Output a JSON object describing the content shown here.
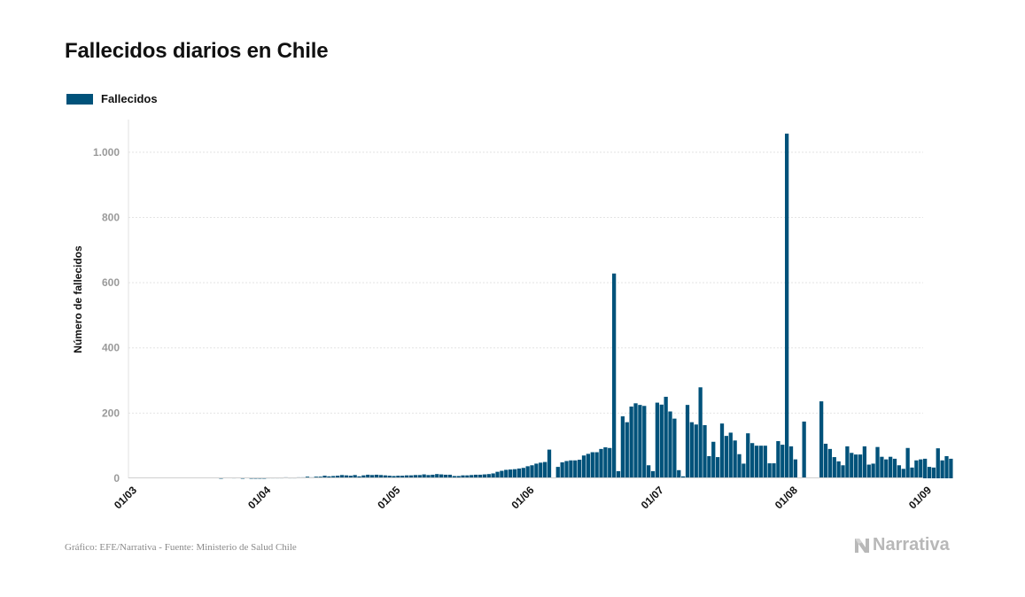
{
  "title": "Fallecidos diarios en Chile",
  "source": "Gráfico: EFE/Narrativa - Fuente: Ministerio de Salud Chile",
  "brand": {
    "name": "Narrativa",
    "icon": "narrativa-logo-icon",
    "color": "#b8b8b8"
  },
  "chart_data": {
    "type": "bar",
    "title": "Fallecidos diarios en Chile",
    "ylabel": "Número de fallecidos",
    "xlabel": "",
    "ylim": [
      0,
      1100
    ],
    "yticks": [
      0,
      200,
      400,
      600,
      800,
      1000
    ],
    "ytick_labels": [
      "0",
      "200",
      "400",
      "600",
      "800",
      "1.000"
    ],
    "x_domain": [
      "2020-03-01",
      "2020-09-01"
    ],
    "xticks": [
      "2020-03-01",
      "2020-04-01",
      "2020-05-01",
      "2020-06-01",
      "2020-07-01",
      "2020-08-01",
      "2020-09-01"
    ],
    "xtick_labels": [
      "01/03",
      "01/04",
      "01/05",
      "01/06",
      "01/07",
      "01/08",
      "01/09"
    ],
    "grid": true,
    "legend_position": "top-left",
    "series": [
      {
        "name": "Fallecidos",
        "color": "#00527a",
        "start_date": "2020-03-01",
        "values": [
          0,
          0,
          0,
          0,
          0,
          0,
          0,
          0,
          0,
          0,
          0,
          0,
          0,
          0,
          0,
          0,
          0,
          0,
          0,
          0,
          0,
          1,
          0,
          0,
          2,
          0,
          1,
          0,
          1,
          1,
          1,
          1,
          2,
          2,
          2,
          2,
          3,
          2,
          2,
          3,
          3,
          5,
          3,
          5,
          5,
          8,
          6,
          7,
          8,
          10,
          9,
          8,
          10,
          6,
          9,
          11,
          10,
          11,
          10,
          9,
          8,
          7,
          8,
          8,
          9,
          9,
          10,
          10,
          12,
          10,
          11,
          13,
          12,
          11,
          11,
          7,
          7,
          9,
          9,
          10,
          11,
          11,
          12,
          13,
          15,
          20,
          23,
          26,
          27,
          28,
          30,
          32,
          37,
          40,
          45,
          48,
          50,
          88,
          0,
          35,
          49,
          53,
          55,
          55,
          57,
          70,
          75,
          80,
          80,
          90,
          95,
          93,
          628,
          22,
          190,
          172,
          220,
          230,
          225,
          222,
          40,
          22,
          232,
          226,
          250,
          205,
          183,
          25,
          6,
          225,
          172,
          165,
          279,
          163,
          68,
          112,
          65,
          168,
          130,
          140,
          116,
          74,
          45,
          138,
          108,
          100,
          100,
          100,
          46,
          46,
          114,
          103,
          1057,
          98,
          58,
          0,
          174,
          0,
          0,
          0,
          236,
          106,
          90,
          65,
          52,
          40,
          98,
          78,
          73,
          73,
          98,
          42,
          45,
          96,
          66,
          58,
          66,
          60,
          40,
          29,
          93,
          33,
          55,
          58,
          60,
          35,
          33,
          92,
          55,
          68,
          60
        ]
      }
    ]
  }
}
